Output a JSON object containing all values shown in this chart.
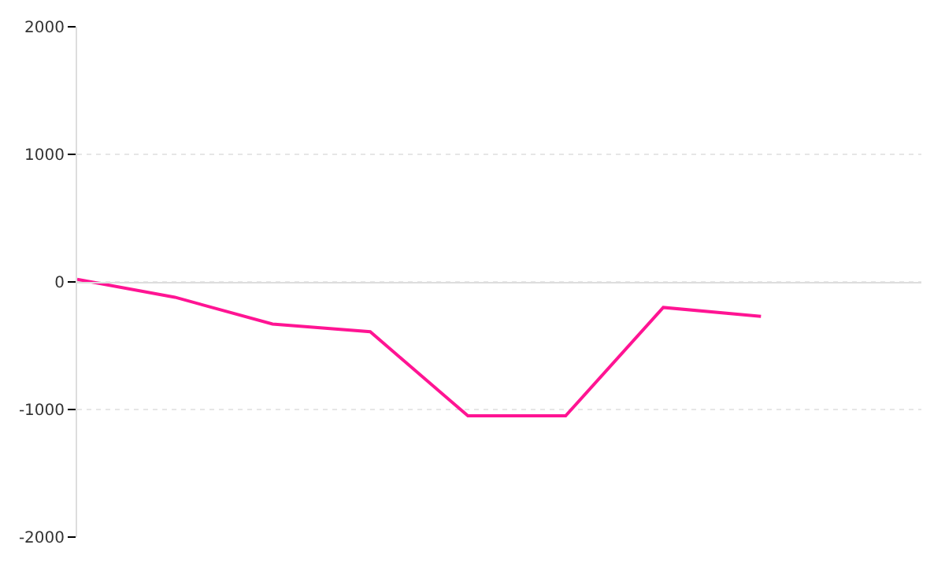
{
  "chart_data": {
    "type": "line",
    "categories": [
      null,
      null,
      null,
      null,
      null,
      null,
      null,
      null
    ],
    "series": [
      {
        "color": "#ff1493",
        "values": [
          20,
          -120,
          -330,
          -390,
          -1050,
          -1050,
          -200,
          -270
        ]
      }
    ],
    "ylim": [
      -2000,
      2000
    ],
    "yticks": [
      -2000,
      -1000,
      0,
      1000,
      2000
    ],
    "tick_labels": "y",
    "grid": "y",
    "marker": "none",
    "line_style": "solid"
  }
}
